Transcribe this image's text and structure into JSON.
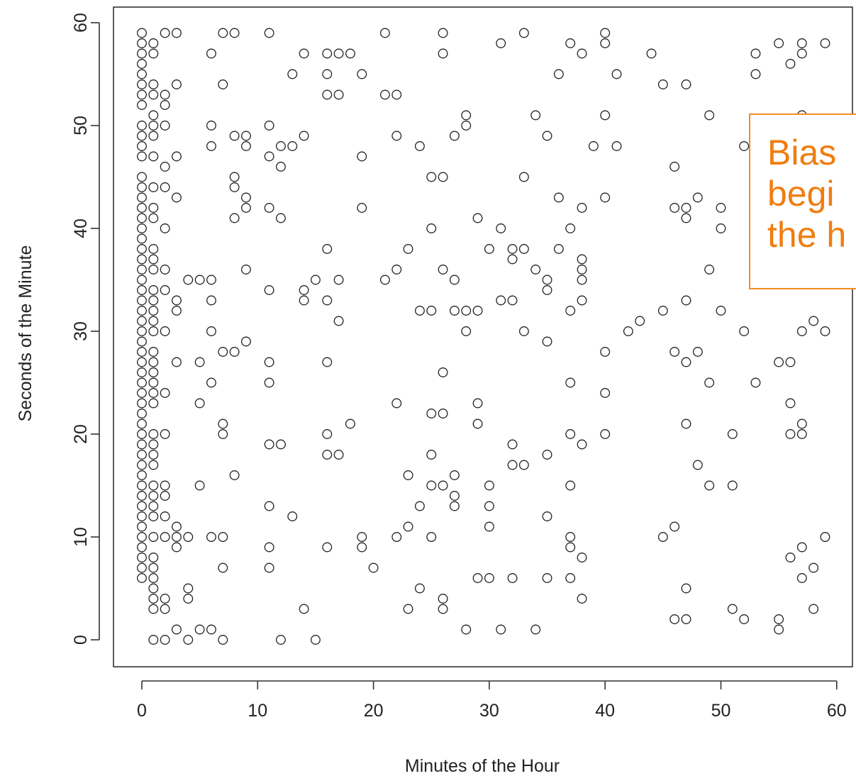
{
  "chart_data": {
    "type": "scatter",
    "title": "",
    "xlabel": "Minutes of the Hour",
    "ylabel": "Seconds of the Minute",
    "xlim": [
      -2.5,
      62
    ],
    "ylim": [
      -2.5,
      62
    ],
    "xticks": [
      0,
      10,
      20,
      30,
      40,
      50,
      60
    ],
    "yticks": [
      0,
      10,
      20,
      30,
      40,
      50,
      60
    ],
    "grid": false,
    "marker": "open-circle",
    "marker_color": "#222222",
    "points": [
      [
        0,
        59
      ],
      [
        0,
        58
      ],
      [
        0,
        57
      ],
      [
        0,
        56
      ],
      [
        0,
        55
      ],
      [
        0,
        54
      ],
      [
        0,
        53
      ],
      [
        0,
        52
      ],
      [
        0,
        50
      ],
      [
        0,
        49
      ],
      [
        0,
        48
      ],
      [
        0,
        47
      ],
      [
        0,
        45
      ],
      [
        0,
        44
      ],
      [
        0,
        43
      ],
      [
        0,
        42
      ],
      [
        0,
        41
      ],
      [
        0,
        40
      ],
      [
        0,
        39
      ],
      [
        0,
        38
      ],
      [
        0,
        37
      ],
      [
        0,
        36
      ],
      [
        0,
        35
      ],
      [
        0,
        34
      ],
      [
        0,
        33
      ],
      [
        0,
        32
      ],
      [
        0,
        31
      ],
      [
        0,
        30
      ],
      [
        0,
        29
      ],
      [
        0,
        28
      ],
      [
        0,
        27
      ],
      [
        0,
        26
      ],
      [
        0,
        25
      ],
      [
        0,
        24
      ],
      [
        0,
        23
      ],
      [
        0,
        22
      ],
      [
        0,
        21
      ],
      [
        0,
        20
      ],
      [
        0,
        19
      ],
      [
        0,
        18
      ],
      [
        0,
        17
      ],
      [
        0,
        16
      ],
      [
        0,
        15
      ],
      [
        0,
        14
      ],
      [
        0,
        13
      ],
      [
        0,
        12
      ],
      [
        0,
        11
      ],
      [
        0,
        10
      ],
      [
        0,
        9
      ],
      [
        0,
        8
      ],
      [
        0,
        7
      ],
      [
        0,
        6
      ],
      [
        1,
        58
      ],
      [
        1,
        57
      ],
      [
        1,
        54
      ],
      [
        1,
        53
      ],
      [
        1,
        51
      ],
      [
        1,
        50
      ],
      [
        1,
        49
      ],
      [
        1,
        47
      ],
      [
        1,
        44
      ],
      [
        1,
        42
      ],
      [
        1,
        41
      ],
      [
        1,
        38
      ],
      [
        1,
        37
      ],
      [
        1,
        36
      ],
      [
        1,
        34
      ],
      [
        1,
        33
      ],
      [
        1,
        32
      ],
      [
        1,
        31
      ],
      [
        1,
        30
      ],
      [
        1,
        28
      ],
      [
        1,
        27
      ],
      [
        1,
        26
      ],
      [
        1,
        25
      ],
      [
        1,
        24
      ],
      [
        1,
        23
      ],
      [
        1,
        20
      ],
      [
        1,
        19
      ],
      [
        1,
        18
      ],
      [
        1,
        17
      ],
      [
        1,
        15
      ],
      [
        1,
        14
      ],
      [
        1,
        13
      ],
      [
        1,
        12
      ],
      [
        1,
        10
      ],
      [
        1,
        8
      ],
      [
        1,
        7
      ],
      [
        1,
        6
      ],
      [
        1,
        5
      ],
      [
        1,
        4
      ],
      [
        1,
        3
      ],
      [
        1,
        0
      ],
      [
        2,
        59
      ],
      [
        2,
        53
      ],
      [
        2,
        52
      ],
      [
        2,
        50
      ],
      [
        2,
        46
      ],
      [
        2,
        44
      ],
      [
        2,
        40
      ],
      [
        2,
        36
      ],
      [
        2,
        34
      ],
      [
        2,
        30
      ],
      [
        2,
        24
      ],
      [
        2,
        20
      ],
      [
        2,
        15
      ],
      [
        2,
        14
      ],
      [
        2,
        12
      ],
      [
        2,
        10
      ],
      [
        2,
        4
      ],
      [
        2,
        3
      ],
      [
        2,
        0
      ],
      [
        3,
        59
      ],
      [
        3,
        54
      ],
      [
        3,
        47
      ],
      [
        3,
        43
      ],
      [
        3,
        33
      ],
      [
        3,
        32
      ],
      [
        3,
        27
      ],
      [
        3,
        11
      ],
      [
        3,
        10
      ],
      [
        3,
        9
      ],
      [
        3,
        1
      ],
      [
        4,
        35
      ],
      [
        4,
        10
      ],
      [
        4,
        5
      ],
      [
        4,
        4
      ],
      [
        4,
        0
      ],
      [
        5,
        35
      ],
      [
        5,
        27
      ],
      [
        5,
        23
      ],
      [
        5,
        15
      ],
      [
        5,
        1
      ],
      [
        6,
        57
      ],
      [
        6,
        50
      ],
      [
        6,
        48
      ],
      [
        6,
        35
      ],
      [
        6,
        33
      ],
      [
        6,
        30
      ],
      [
        6,
        25
      ],
      [
        6,
        10
      ],
      [
        6,
        1
      ],
      [
        7,
        59
      ],
      [
        7,
        54
      ],
      [
        7,
        28
      ],
      [
        7,
        21
      ],
      [
        7,
        20
      ],
      [
        7,
        10
      ],
      [
        7,
        7
      ],
      [
        7,
        0
      ],
      [
        8,
        59
      ],
      [
        8,
        49
      ],
      [
        8,
        45
      ],
      [
        8,
        44
      ],
      [
        8,
        41
      ],
      [
        8,
        28
      ],
      [
        8,
        16
      ],
      [
        9,
        49
      ],
      [
        9,
        48
      ],
      [
        9,
        43
      ],
      [
        9,
        42
      ],
      [
        9,
        36
      ],
      [
        9,
        29
      ],
      [
        11,
        59
      ],
      [
        11,
        50
      ],
      [
        11,
        47
      ],
      [
        11,
        42
      ],
      [
        11,
        34
      ],
      [
        11,
        27
      ],
      [
        11,
        25
      ],
      [
        11,
        19
      ],
      [
        11,
        13
      ],
      [
        11,
        9
      ],
      [
        11,
        7
      ],
      [
        12,
        48
      ],
      [
        12,
        46
      ],
      [
        12,
        41
      ],
      [
        12,
        19
      ],
      [
        12,
        0
      ],
      [
        13,
        55
      ],
      [
        13,
        48
      ],
      [
        13,
        12
      ],
      [
        14,
        57
      ],
      [
        14,
        49
      ],
      [
        14,
        34
      ],
      [
        14,
        33
      ],
      [
        14,
        3
      ],
      [
        15,
        35
      ],
      [
        15,
        0
      ],
      [
        16,
        57
      ],
      [
        16,
        55
      ],
      [
        16,
        53
      ],
      [
        16,
        38
      ],
      [
        16,
        33
      ],
      [
        16,
        27
      ],
      [
        16,
        20
      ],
      [
        16,
        18
      ],
      [
        16,
        9
      ],
      [
        17,
        57
      ],
      [
        17,
        53
      ],
      [
        17,
        35
      ],
      [
        17,
        31
      ],
      [
        17,
        18
      ],
      [
        18,
        57
      ],
      [
        18,
        21
      ],
      [
        19,
        55
      ],
      [
        19,
        47
      ],
      [
        19,
        42
      ],
      [
        19,
        10
      ],
      [
        19,
        9
      ],
      [
        20,
        7
      ],
      [
        21,
        59
      ],
      [
        21,
        53
      ],
      [
        21,
        35
      ],
      [
        22,
        53
      ],
      [
        22,
        49
      ],
      [
        22,
        36
      ],
      [
        22,
        23
      ],
      [
        22,
        10
      ],
      [
        23,
        38
      ],
      [
        23,
        16
      ],
      [
        23,
        11
      ],
      [
        23,
        3
      ],
      [
        24,
        48
      ],
      [
        24,
        32
      ],
      [
        24,
        13
      ],
      [
        24,
        5
      ],
      [
        25,
        45
      ],
      [
        25,
        40
      ],
      [
        25,
        32
      ],
      [
        25,
        22
      ],
      [
        25,
        18
      ],
      [
        25,
        15
      ],
      [
        25,
        10
      ],
      [
        26,
        59
      ],
      [
        26,
        57
      ],
      [
        26,
        45
      ],
      [
        26,
        36
      ],
      [
        26,
        26
      ],
      [
        26,
        22
      ],
      [
        26,
        15
      ],
      [
        26,
        4
      ],
      [
        26,
        3
      ],
      [
        27,
        49
      ],
      [
        27,
        35
      ],
      [
        27,
        32
      ],
      [
        27,
        16
      ],
      [
        27,
        14
      ],
      [
        27,
        13
      ],
      [
        28,
        51
      ],
      [
        28,
        50
      ],
      [
        28,
        32
      ],
      [
        28,
        30
      ],
      [
        28,
        1
      ],
      [
        29,
        41
      ],
      [
        29,
        32
      ],
      [
        29,
        23
      ],
      [
        29,
        21
      ],
      [
        29,
        6
      ],
      [
        30,
        38
      ],
      [
        30,
        15
      ],
      [
        30,
        13
      ],
      [
        30,
        11
      ],
      [
        30,
        6
      ],
      [
        31,
        58
      ],
      [
        31,
        40
      ],
      [
        31,
        33
      ],
      [
        31,
        1
      ],
      [
        32,
        38
      ],
      [
        32,
        37
      ],
      [
        32,
        33
      ],
      [
        32,
        19
      ],
      [
        32,
        17
      ],
      [
        32,
        6
      ],
      [
        33,
        59
      ],
      [
        33,
        45
      ],
      [
        33,
        38
      ],
      [
        33,
        30
      ],
      [
        33,
        17
      ],
      [
        34,
        51
      ],
      [
        34,
        36
      ],
      [
        34,
        1
      ],
      [
        35,
        49
      ],
      [
        35,
        35
      ],
      [
        35,
        34
      ],
      [
        35,
        29
      ],
      [
        35,
        18
      ],
      [
        35,
        12
      ],
      [
        35,
        6
      ],
      [
        36,
        55
      ],
      [
        36,
        43
      ],
      [
        36,
        38
      ],
      [
        37,
        58
      ],
      [
        37,
        40
      ],
      [
        37,
        32
      ],
      [
        37,
        25
      ],
      [
        37,
        20
      ],
      [
        37,
        15
      ],
      [
        37,
        10
      ],
      [
        37,
        9
      ],
      [
        37,
        6
      ],
      [
        38,
        57
      ],
      [
        38,
        42
      ],
      [
        38,
        37
      ],
      [
        38,
        36
      ],
      [
        38,
        35
      ],
      [
        38,
        33
      ],
      [
        38,
        19
      ],
      [
        38,
        8
      ],
      [
        38,
        4
      ],
      [
        39,
        48
      ],
      [
        40,
        59
      ],
      [
        40,
        58
      ],
      [
        40,
        51
      ],
      [
        40,
        43
      ],
      [
        40,
        28
      ],
      [
        40,
        24
      ],
      [
        40,
        20
      ],
      [
        41,
        55
      ],
      [
        41,
        48
      ],
      [
        42,
        30
      ],
      [
        43,
        31
      ],
      [
        44,
        57
      ],
      [
        45,
        54
      ],
      [
        45,
        32
      ],
      [
        45,
        10
      ],
      [
        46,
        46
      ],
      [
        46,
        42
      ],
      [
        46,
        28
      ],
      [
        46,
        11
      ],
      [
        46,
        2
      ],
      [
        47,
        54
      ],
      [
        47,
        42
      ],
      [
        47,
        41
      ],
      [
        47,
        33
      ],
      [
        47,
        27
      ],
      [
        47,
        21
      ],
      [
        47,
        5
      ],
      [
        47,
        2
      ],
      [
        48,
        43
      ],
      [
        48,
        28
      ],
      [
        48,
        17
      ],
      [
        49,
        51
      ],
      [
        49,
        36
      ],
      [
        49,
        25
      ],
      [
        49,
        15
      ],
      [
        50,
        42
      ],
      [
        50,
        40
      ],
      [
        50,
        32
      ],
      [
        51,
        20
      ],
      [
        51,
        15
      ],
      [
        51,
        3
      ],
      [
        52,
        48
      ],
      [
        52,
        30
      ],
      [
        52,
        2
      ],
      [
        53,
        57
      ],
      [
        53,
        55
      ],
      [
        53,
        25
      ],
      [
        55,
        58
      ],
      [
        55,
        27
      ],
      [
        55,
        2
      ],
      [
        55,
        1
      ],
      [
        56,
        56
      ],
      [
        56,
        27
      ],
      [
        56,
        23
      ],
      [
        56,
        20
      ],
      [
        56,
        8
      ],
      [
        57,
        58
      ],
      [
        57,
        57
      ],
      [
        57,
        51
      ],
      [
        57,
        30
      ],
      [
        57,
        21
      ],
      [
        57,
        20
      ],
      [
        57,
        9
      ],
      [
        57,
        6
      ],
      [
        58,
        31
      ],
      [
        58,
        7
      ],
      [
        58,
        3
      ],
      [
        59,
        58
      ],
      [
        59,
        30
      ],
      [
        59,
        10
      ]
    ]
  },
  "callout": {
    "text": "Bias\nbegi\nthe h",
    "border_color": "#f58b1f",
    "text_color": "#f07d10"
  }
}
